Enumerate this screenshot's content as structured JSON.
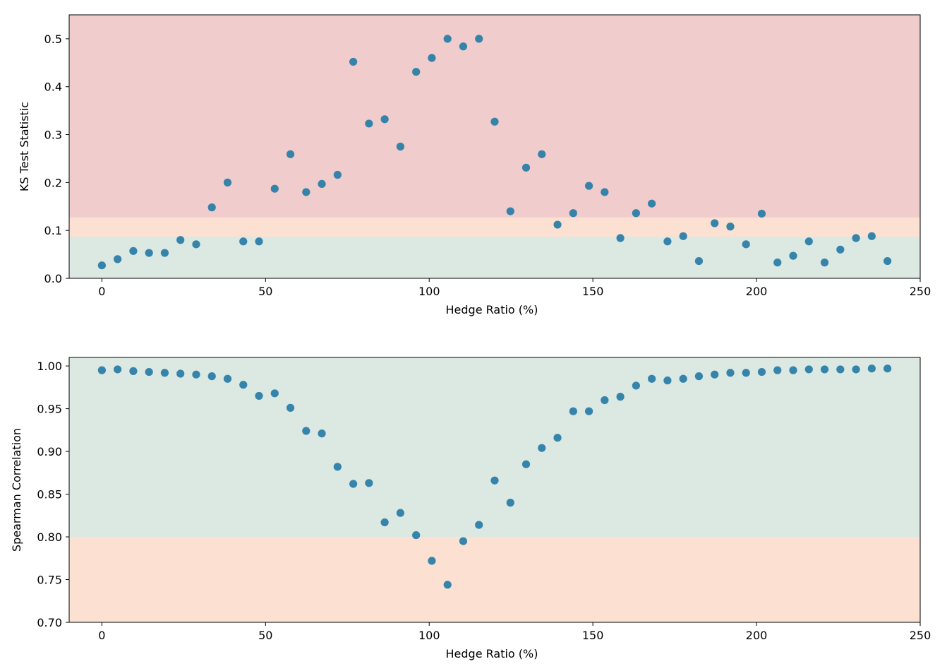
{
  "colors": {
    "band_red": "#f0cccc",
    "band_orange": "#fce1d2",
    "band_green": "#dce8e2",
    "point": "#2b7ea8"
  },
  "chart_data": [
    {
      "type": "scatter",
      "xlabel": "Hedge Ratio (%)",
      "ylabel": "KS Test Statistic",
      "xlim": [
        -10,
        250
      ],
      "ylim": [
        0.0,
        0.55
      ],
      "xticks": [
        0,
        50,
        100,
        150,
        200,
        250
      ],
      "yticks": [
        0.0,
        0.1,
        0.2,
        0.3,
        0.4,
        0.5
      ],
      "ytick_decimals": 1,
      "grid": false,
      "bands": [
        {
          "from": 0.0,
          "to": 0.087,
          "color": "#dce8e2"
        },
        {
          "from": 0.087,
          "to": 0.127,
          "color": "#fce1d2"
        },
        {
          "from": 0.127,
          "to": 0.55,
          "color": "#f0cccc"
        }
      ],
      "x": [
        0,
        4.8,
        9.6,
        14.4,
        19.2,
        24,
        28.8,
        33.6,
        38.4,
        43.2,
        48,
        52.8,
        57.6,
        62.4,
        67.2,
        72,
        76.8,
        81.6,
        86.4,
        91.2,
        96,
        100.8,
        105.6,
        110.4,
        115.2,
        120,
        124.8,
        129.6,
        134.4,
        139.2,
        144,
        148.8,
        153.6,
        158.4,
        163.2,
        168,
        172.8,
        177.6,
        182.4,
        187.2,
        192,
        196.8,
        201.6,
        206.4,
        211.2,
        216,
        220.8,
        225.6,
        230.4,
        235.2,
        240
      ],
      "y": [
        0.027,
        0.04,
        0.057,
        0.053,
        0.053,
        0.08,
        0.071,
        0.148,
        0.2,
        0.077,
        0.077,
        0.187,
        0.259,
        0.18,
        0.197,
        0.216,
        0.452,
        0.323,
        0.332,
        0.275,
        0.431,
        0.46,
        0.5,
        0.484,
        0.5,
        0.327,
        0.14,
        0.231,
        0.259,
        0.112,
        0.136,
        0.193,
        0.18,
        0.084,
        0.136,
        0.156,
        0.077,
        0.088,
        0.036,
        0.115,
        0.108,
        0.071,
        0.135,
        0.033,
        0.047,
        0.077,
        0.033,
        0.06,
        0.084,
        0.088,
        0.036
      ]
    },
    {
      "type": "scatter",
      "xlabel": "Hedge Ratio (%)",
      "ylabel": "Spearman Correlation",
      "xlim": [
        -10,
        250
      ],
      "ylim": [
        0.7,
        1.01
      ],
      "xticks": [
        0,
        50,
        100,
        150,
        200,
        250
      ],
      "yticks": [
        0.7,
        0.75,
        0.8,
        0.85,
        0.9,
        0.95,
        1.0
      ],
      "ytick_decimals": 2,
      "grid": false,
      "bands": [
        {
          "from": 0.7,
          "to": 0.8,
          "color": "#fce1d2"
        },
        {
          "from": 0.8,
          "to": 1.01,
          "color": "#dce8e2"
        }
      ],
      "x": [
        0,
        4.8,
        9.6,
        14.4,
        19.2,
        24,
        28.8,
        33.6,
        38.4,
        43.2,
        48,
        52.8,
        57.6,
        62.4,
        67.2,
        72,
        76.8,
        81.6,
        86.4,
        91.2,
        96,
        100.8,
        105.6,
        110.4,
        115.2,
        120,
        124.8,
        129.6,
        134.4,
        139.2,
        144,
        148.8,
        153.6,
        158.4,
        163.2,
        168,
        172.8,
        177.6,
        182.4,
        187.2,
        192,
        196.8,
        201.6,
        206.4,
        211.2,
        216,
        220.8,
        225.6,
        230.4,
        235.2,
        240
      ],
      "y": [
        0.995,
        0.996,
        0.994,
        0.993,
        0.992,
        0.991,
        0.99,
        0.988,
        0.985,
        0.978,
        0.965,
        0.968,
        0.951,
        0.924,
        0.921,
        0.882,
        0.862,
        0.863,
        0.817,
        0.828,
        0.802,
        0.772,
        0.744,
        0.795,
        0.814,
        0.866,
        0.84,
        0.885,
        0.904,
        0.916,
        0.947,
        0.947,
        0.96,
        0.964,
        0.977,
        0.985,
        0.983,
        0.985,
        0.988,
        0.99,
        0.992,
        0.992,
        0.993,
        0.995,
        0.995,
        0.996,
        0.996,
        0.996,
        0.996,
        0.997,
        0.997
      ]
    }
  ]
}
